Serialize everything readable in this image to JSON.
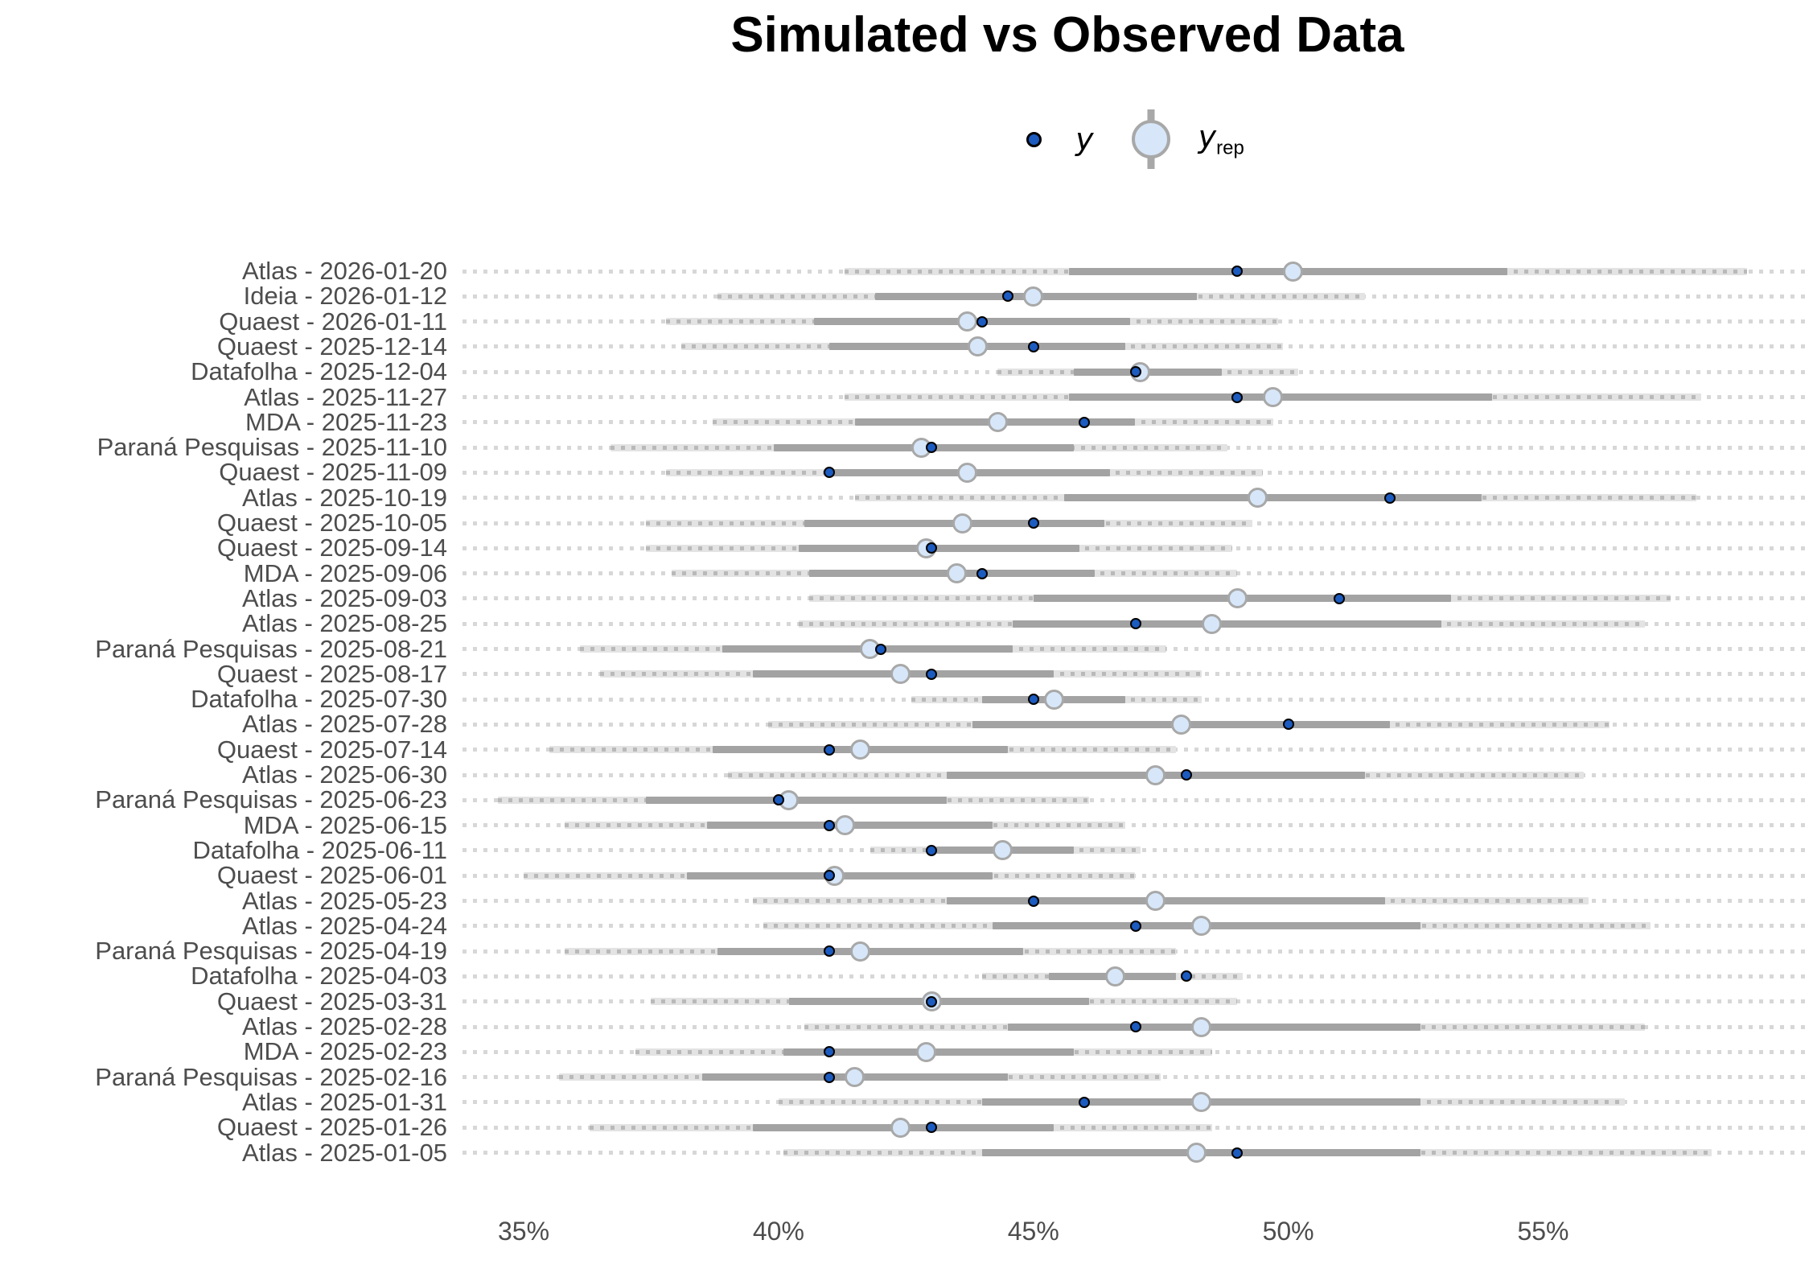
{
  "title": "Simulated vs Observed Data",
  "legend": {
    "y_label": "y",
    "yrep_label": "y",
    "yrep_sub": "rep"
  },
  "colors": {
    "y_point": "#1c5bbf",
    "y_point_border": "#000000",
    "yrep_point_fill": "#d7e7f9",
    "yrep_point_border": "#a8a8a8",
    "inner_interval": "#a3a3a3",
    "outer_interval": "#e3e3e3",
    "grid_dots": "#d7d7d7",
    "axis_text": "#4d4d4d",
    "title_text": "#000000"
  },
  "chart_data": {
    "type": "pointinterval",
    "title": "Simulated vs Observed Data",
    "xlabel": "",
    "ylabel": "",
    "x_unit": "%",
    "xlim": [
      33.8,
      60.2
    ],
    "x_ticks": [
      {
        "value": 35,
        "label": "35%"
      },
      {
        "value": 40,
        "label": "40%"
      },
      {
        "value": 45,
        "label": "45%"
      },
      {
        "value": 50,
        "label": "50%"
      },
      {
        "value": 55,
        "label": "55%"
      }
    ],
    "legend_position": "top",
    "grid": "dotted-horizontal",
    "series_names": [
      "y",
      "yrep"
    ],
    "rows": [
      {
        "label": "Atlas - 2026-01-20",
        "y": 49,
        "yrep": 50.1,
        "inner": [
          45.7,
          54.3
        ],
        "outer": [
          41.3,
          59.0
        ]
      },
      {
        "label": "Ideia - 2026-01-12",
        "y": 44.5,
        "yrep": 45.0,
        "inner": [
          41.9,
          48.2
        ],
        "outer": [
          38.8,
          51.5
        ]
      },
      {
        "label": "Quaest - 2026-01-11",
        "y": 44,
        "yrep": 43.7,
        "inner": [
          40.7,
          46.9
        ],
        "outer": [
          37.8,
          49.8
        ]
      },
      {
        "label": "Quaest - 2025-12-14",
        "y": 45,
        "yrep": 43.9,
        "inner": [
          41.0,
          46.8
        ],
        "outer": [
          38.1,
          49.9
        ]
      },
      {
        "label": "Datafolha - 2025-12-04",
        "y": 47,
        "yrep": 47.1,
        "inner": [
          45.8,
          48.7
        ],
        "outer": [
          44.3,
          50.2
        ]
      },
      {
        "label": "Atlas - 2025-11-27",
        "y": 49,
        "yrep": 49.7,
        "inner": [
          45.7,
          54.0
        ],
        "outer": [
          41.3,
          58.1
        ]
      },
      {
        "label": "MDA - 2025-11-23",
        "y": 46,
        "yrep": 44.3,
        "inner": [
          41.5,
          47.0
        ],
        "outer": [
          38.7,
          49.7
        ]
      },
      {
        "label": "Paraná Pesquisas - 2025-11-10",
        "y": 43,
        "yrep": 42.8,
        "inner": [
          39.9,
          45.8
        ],
        "outer": [
          36.7,
          48.8
        ]
      },
      {
        "label": "Quaest - 2025-11-09",
        "y": 41,
        "yrep": 43.7,
        "inner": [
          40.9,
          46.5
        ],
        "outer": [
          37.8,
          49.5
        ]
      },
      {
        "label": "Atlas - 2025-10-19",
        "y": 52,
        "yrep": 49.4,
        "inner": [
          45.6,
          53.8
        ],
        "outer": [
          41.5,
          58.0
        ]
      },
      {
        "label": "Quaest - 2025-10-05",
        "y": 45,
        "yrep": 43.6,
        "inner": [
          40.5,
          46.4
        ],
        "outer": [
          37.4,
          49.3
        ]
      },
      {
        "label": "Quaest - 2025-09-14",
        "y": 43,
        "yrep": 42.9,
        "inner": [
          40.4,
          45.9
        ],
        "outer": [
          37.4,
          48.9
        ]
      },
      {
        "label": "MDA - 2025-09-06",
        "y": 44,
        "yrep": 43.5,
        "inner": [
          40.6,
          46.2
        ],
        "outer": [
          37.9,
          49.0
        ]
      },
      {
        "label": "Atlas - 2025-09-03",
        "y": 51,
        "yrep": 49.0,
        "inner": [
          45.0,
          53.2
        ],
        "outer": [
          40.6,
          57.5
        ]
      },
      {
        "label": "Atlas - 2025-08-25",
        "y": 47,
        "yrep": 48.5,
        "inner": [
          44.6,
          53.0
        ],
        "outer": [
          40.4,
          57.0
        ]
      },
      {
        "label": "Paraná Pesquisas - 2025-08-21",
        "y": 42,
        "yrep": 41.8,
        "inner": [
          38.9,
          44.6
        ],
        "outer": [
          36.1,
          47.6
        ]
      },
      {
        "label": "Quaest - 2025-08-17",
        "y": 43,
        "yrep": 42.4,
        "inner": [
          39.5,
          45.4
        ],
        "outer": [
          36.5,
          48.3
        ]
      },
      {
        "label": "Datafolha - 2025-07-30",
        "y": 45,
        "yrep": 45.4,
        "inner": [
          44.0,
          46.8
        ],
        "outer": [
          42.6,
          48.3
        ]
      },
      {
        "label": "Atlas - 2025-07-28",
        "y": 50,
        "yrep": 47.9,
        "inner": [
          43.8,
          52.0
        ],
        "outer": [
          39.8,
          56.3
        ]
      },
      {
        "label": "Quaest - 2025-07-14",
        "y": 41,
        "yrep": 41.6,
        "inner": [
          38.7,
          44.5
        ],
        "outer": [
          35.5,
          47.8
        ]
      },
      {
        "label": "Atlas - 2025-06-30",
        "y": 48,
        "yrep": 47.4,
        "inner": [
          43.3,
          51.5
        ],
        "outer": [
          39.0,
          55.8
        ]
      },
      {
        "label": "Paraná Pesquisas - 2025-06-23",
        "y": 40,
        "yrep": 40.2,
        "inner": [
          37.4,
          43.3
        ],
        "outer": [
          34.5,
          46.1
        ]
      },
      {
        "label": "MDA - 2025-06-15",
        "y": 41,
        "yrep": 41.3,
        "inner": [
          38.6,
          44.2
        ],
        "outer": [
          35.8,
          46.8
        ]
      },
      {
        "label": "Datafolha - 2025-06-11",
        "y": 43,
        "yrep": 44.4,
        "inner": [
          43.1,
          45.8
        ],
        "outer": [
          41.8,
          47.1
        ]
      },
      {
        "label": "Quaest - 2025-06-01",
        "y": 41,
        "yrep": 41.1,
        "inner": [
          38.2,
          44.2
        ],
        "outer": [
          35.0,
          47.0
        ]
      },
      {
        "label": "Atlas - 2025-05-23",
        "y": 45,
        "yrep": 47.4,
        "inner": [
          43.3,
          51.9
        ],
        "outer": [
          39.5,
          55.9
        ]
      },
      {
        "label": "Atlas - 2025-04-24",
        "y": 47,
        "yrep": 48.3,
        "inner": [
          44.2,
          52.6
        ],
        "outer": [
          39.7,
          57.1
        ]
      },
      {
        "label": "Paraná Pesquisas - 2025-04-19",
        "y": 41,
        "yrep": 41.6,
        "inner": [
          38.8,
          44.8
        ],
        "outer": [
          35.8,
          47.8
        ]
      },
      {
        "label": "Datafolha - 2025-04-03",
        "y": 48,
        "yrep": 46.6,
        "inner": [
          45.3,
          47.8
        ],
        "outer": [
          44.0,
          49.1
        ]
      },
      {
        "label": "Quaest - 2025-03-31",
        "y": 43,
        "yrep": 43.0,
        "inner": [
          40.2,
          46.1
        ],
        "outer": [
          37.5,
          49.0
        ]
      },
      {
        "label": "Atlas - 2025-02-28",
        "y": 47,
        "yrep": 48.3,
        "inner": [
          44.5,
          52.6
        ],
        "outer": [
          40.5,
          57.0
        ]
      },
      {
        "label": "MDA - 2025-02-23",
        "y": 41,
        "yrep": 42.9,
        "inner": [
          40.1,
          45.8
        ],
        "outer": [
          37.2,
          48.5
        ]
      },
      {
        "label": "Paraná Pesquisas - 2025-02-16",
        "y": 41,
        "yrep": 41.5,
        "inner": [
          38.5,
          44.5
        ],
        "outer": [
          35.7,
          47.5
        ]
      },
      {
        "label": "Atlas - 2025-01-31",
        "y": 46,
        "yrep": 48.3,
        "inner": [
          44.0,
          52.6
        ],
        "outer": [
          40.0,
          56.6
        ]
      },
      {
        "label": "Quaest - 2025-01-26",
        "y": 43,
        "yrep": 42.4,
        "inner": [
          39.5,
          45.4
        ],
        "outer": [
          36.3,
          48.5
        ]
      },
      {
        "label": "Atlas - 2025-01-05",
        "y": 49,
        "yrep": 48.2,
        "inner": [
          44.0,
          52.6
        ],
        "outer": [
          40.1,
          58.3
        ]
      }
    ]
  }
}
